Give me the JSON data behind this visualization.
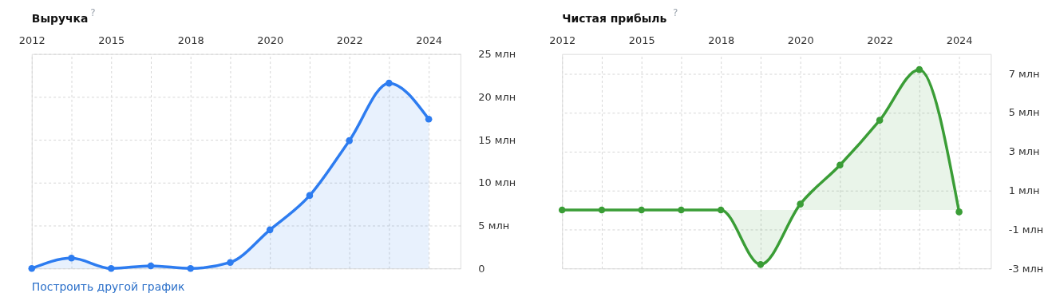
{
  "chart_data": [
    {
      "type": "area",
      "title": "Выручка",
      "annotations": [
        "?",
        "Построить другой график"
      ],
      "categories": [
        "2012",
        null,
        "2015",
        null,
        "2018",
        null,
        "2020",
        null,
        "2022",
        null,
        "2024"
      ],
      "series": [
        {
          "color": "#2d7cf0",
          "values": [
            0,
            1.2,
            0,
            0.3,
            0,
            0.7,
            4.5,
            8.5,
            14.9,
            21.6,
            17.4
          ]
        }
      ],
      "ylim": [
        0,
        25
      ],
      "yticks": [
        0,
        {
          "value": 5,
          "label": "5 млн"
        },
        {
          "value": 10,
          "label": "10 млн"
        },
        {
          "value": 15,
          "label": "15 млн"
        },
        {
          "value": 20,
          "label": "20 млн"
        },
        {
          "value": 25,
          "label": "25 млн"
        }
      ],
      "grid": true,
      "marker": "circle",
      "line_style": "solid"
    },
    {
      "type": "area",
      "title": "Чистая прибыль",
      "annotations": [
        "?"
      ],
      "categories": [
        "2012",
        null,
        "2015",
        null,
        "2018",
        null,
        "2020",
        null,
        "2022",
        null,
        "2024"
      ],
      "series": [
        {
          "color": "#3a9d36",
          "values": [
            0,
            0,
            0,
            0,
            0,
            -2.8,
            0.3,
            2.3,
            4.6,
            7.2,
            -0.1
          ]
        }
      ],
      "ylim": [
        -3,
        8
      ],
      "yticks": [
        {
          "value": -3,
          "label": "-3 млн"
        },
        {
          "value": -1,
          "label": "-1 млн"
        },
        {
          "value": 1,
          "label": "1 млн"
        },
        {
          "value": 3,
          "label": "3 млн"
        },
        {
          "value": 5,
          "label": "5 млн"
        },
        {
          "value": 7,
          "label": "7 млн"
        }
      ],
      "grid": true,
      "marker": "circle",
      "line_style": "solid"
    }
  ]
}
